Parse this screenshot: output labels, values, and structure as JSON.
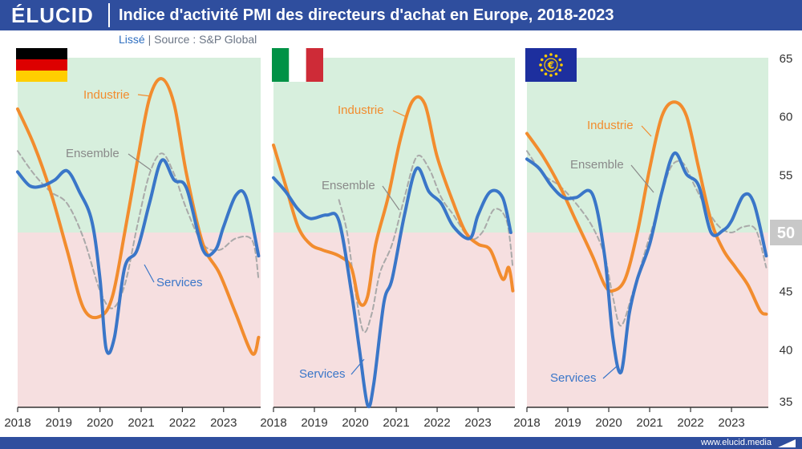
{
  "header": {
    "logo": "ÉLUCID",
    "title": "Indice d'activité PMI des directeurs d'achat en Europe, 2018-2023",
    "subtitle_smooth": "Lissé",
    "subtitle_separator": "|",
    "subtitle_source": "Source : S&P Global"
  },
  "footer": {
    "url": "www.elucid.media"
  },
  "colors": {
    "industrie": "#f28c2e",
    "services": "#3a76c8",
    "ensemble": "#a9a9a9",
    "expansion_zone": "#d7efdd",
    "contraction_zone": "#f6dfe0",
    "brand": "#2f4e9e"
  },
  "chart_data": [
    {
      "type": "line",
      "panel": "germany",
      "flag": "germany-flag",
      "ylim": [
        35,
        65
      ],
      "y_ticks": [
        "35",
        "40",
        "45",
        "50",
        "55",
        "60",
        "65"
      ],
      "threshold": 50,
      "x_ticks": [
        "2018",
        "2019",
        "2020",
        "2021",
        "2022",
        "2023"
      ],
      "series": [
        {
          "name": "Industrie",
          "x": [
            2018.0,
            2018.4,
            2018.8,
            2019.2,
            2019.6,
            2020.0,
            2020.3,
            2020.6,
            2020.9,
            2021.2,
            2021.5,
            2021.8,
            2022.1,
            2022.5,
            2022.9,
            2023.3,
            2023.7,
            2023.85
          ],
          "y": [
            60.6,
            57.5,
            53.5,
            48.5,
            43.5,
            42.8,
            44.5,
            50.0,
            56.0,
            61.5,
            63.2,
            61.0,
            55.0,
            49.0,
            46.5,
            43.0,
            39.6,
            41.0
          ]
        },
        {
          "name": "Services",
          "x": [
            2018.0,
            2018.3,
            2018.6,
            2018.9,
            2019.2,
            2019.5,
            2019.8,
            2020.0,
            2020.15,
            2020.35,
            2020.6,
            2020.9,
            2021.2,
            2021.5,
            2021.8,
            2022.1,
            2022.5,
            2022.8,
            2023.0,
            2023.3,
            2023.55,
            2023.85
          ],
          "y": [
            55.2,
            54.0,
            54.0,
            54.5,
            55.3,
            53.5,
            51.0,
            46.0,
            40.0,
            41.0,
            47.0,
            48.5,
            52.5,
            56.2,
            54.5,
            53.8,
            48.5,
            48.5,
            50.5,
            53.2,
            53.0,
            48.0
          ]
        },
        {
          "name": "Ensemble",
          "x": [
            2018.0,
            2018.4,
            2018.8,
            2019.2,
            2019.6,
            2020.0,
            2020.3,
            2020.6,
            2020.9,
            2021.2,
            2021.5,
            2021.8,
            2022.1,
            2022.5,
            2022.9,
            2023.3,
            2023.7,
            2023.85
          ],
          "y": [
            57.0,
            55.0,
            53.5,
            52.5,
            49.5,
            45.0,
            43.5,
            45.5,
            50.5,
            55.0,
            56.8,
            55.0,
            52.0,
            49.0,
            48.5,
            49.5,
            49.3,
            46.0
          ]
        }
      ]
    },
    {
      "type": "line",
      "panel": "italy",
      "flag": "italy-flag",
      "ylim": [
        35,
        65
      ],
      "threshold": 50,
      "x_ticks": [
        "2018",
        "2019",
        "2020",
        "2021",
        "2022",
        "2023"
      ],
      "series": [
        {
          "name": "Industrie",
          "x": [
            2018.0,
            2018.3,
            2018.6,
            2018.9,
            2019.2,
            2019.6,
            2019.9,
            2020.1,
            2020.3,
            2020.5,
            2020.8,
            2021.1,
            2021.4,
            2021.7,
            2022.0,
            2022.4,
            2022.7,
            2023.0,
            2023.3,
            2023.6,
            2023.75,
            2023.85
          ],
          "y": [
            57.5,
            54.0,
            50.5,
            49.0,
            48.5,
            48.0,
            47.0,
            44.0,
            44.5,
            49.0,
            53.0,
            58.0,
            61.3,
            61.0,
            56.5,
            52.5,
            50.0,
            49.0,
            48.5,
            46.0,
            47.0,
            45.0
          ]
        },
        {
          "name": "Services",
          "x": [
            2018.0,
            2018.3,
            2018.6,
            2018.9,
            2019.3,
            2019.6,
            2019.9,
            2020.1,
            2020.3,
            2020.45,
            2020.7,
            2020.9,
            2021.2,
            2021.5,
            2021.8,
            2022.1,
            2022.4,
            2022.8,
            2023.0,
            2023.3,
            2023.6,
            2023.8
          ],
          "y": [
            54.7,
            53.5,
            52.0,
            51.2,
            51.5,
            51.0,
            45.0,
            40.0,
            35.2,
            37.0,
            44.0,
            46.0,
            51.5,
            55.5,
            53.5,
            52.5,
            50.5,
            49.5,
            51.5,
            53.5,
            53.0,
            50.0
          ]
        },
        {
          "name": "Ensemble",
          "x": [
            2019.6,
            2019.8,
            2020.0,
            2020.2,
            2020.4,
            2020.6,
            2020.9,
            2021.2,
            2021.5,
            2021.8,
            2022.1,
            2022.4,
            2022.8,
            2023.1,
            2023.4,
            2023.7,
            2023.85
          ],
          "y": [
            52.8,
            50.0,
            45.0,
            41.5,
            43.0,
            46.5,
            49.0,
            53.0,
            56.5,
            55.5,
            53.0,
            51.5,
            49.5,
            50.0,
            52.0,
            51.0,
            47.0
          ]
        }
      ]
    },
    {
      "type": "line",
      "panel": "eurozone",
      "flag": "eu-flag",
      "ylim": [
        35,
        65
      ],
      "threshold": 50,
      "x_ticks": [
        "2018",
        "2019",
        "2020",
        "2021",
        "2022",
        "2023"
      ],
      "series": [
        {
          "name": "Industrie",
          "x": [
            2018.0,
            2018.4,
            2018.8,
            2019.2,
            2019.6,
            2019.9,
            2020.1,
            2020.4,
            2020.7,
            2021.0,
            2021.3,
            2021.6,
            2021.9,
            2022.2,
            2022.5,
            2022.8,
            2023.1,
            2023.4,
            2023.7,
            2023.85
          ],
          "y": [
            58.5,
            56.5,
            54.0,
            51.0,
            48.0,
            45.5,
            45.0,
            46.0,
            50.0,
            55.5,
            60.0,
            61.2,
            60.0,
            55.5,
            51.0,
            48.5,
            47.0,
            45.5,
            43.3,
            43.0
          ]
        },
        {
          "name": "Services",
          "x": [
            2018.0,
            2018.3,
            2018.6,
            2018.9,
            2019.2,
            2019.6,
            2019.9,
            2020.1,
            2020.3,
            2020.5,
            2020.7,
            2021.0,
            2021.3,
            2021.6,
            2021.9,
            2022.2,
            2022.5,
            2022.8,
            2023.0,
            2023.3,
            2023.55,
            2023.85
          ],
          "y": [
            56.3,
            55.5,
            54.0,
            53.0,
            53.0,
            53.3,
            48.0,
            41.0,
            38.0,
            43.0,
            46.0,
            49.0,
            53.5,
            56.8,
            55.0,
            54.0,
            50.0,
            50.2,
            51.0,
            53.2,
            52.5,
            48.0
          ]
        },
        {
          "name": "Ensemble",
          "x": [
            2018.0,
            2018.4,
            2018.8,
            2019.2,
            2019.6,
            2019.9,
            2020.1,
            2020.3,
            2020.6,
            2020.9,
            2021.2,
            2021.5,
            2021.8,
            2022.1,
            2022.4,
            2022.7,
            2023.0,
            2023.3,
            2023.6,
            2023.85
          ],
          "y": [
            57.0,
            55.0,
            54.0,
            52.5,
            50.5,
            48.0,
            44.5,
            42.0,
            45.0,
            48.5,
            52.0,
            55.5,
            56.0,
            54.0,
            52.0,
            50.5,
            50.0,
            50.5,
            50.2,
            47.0
          ]
        }
      ]
    }
  ]
}
